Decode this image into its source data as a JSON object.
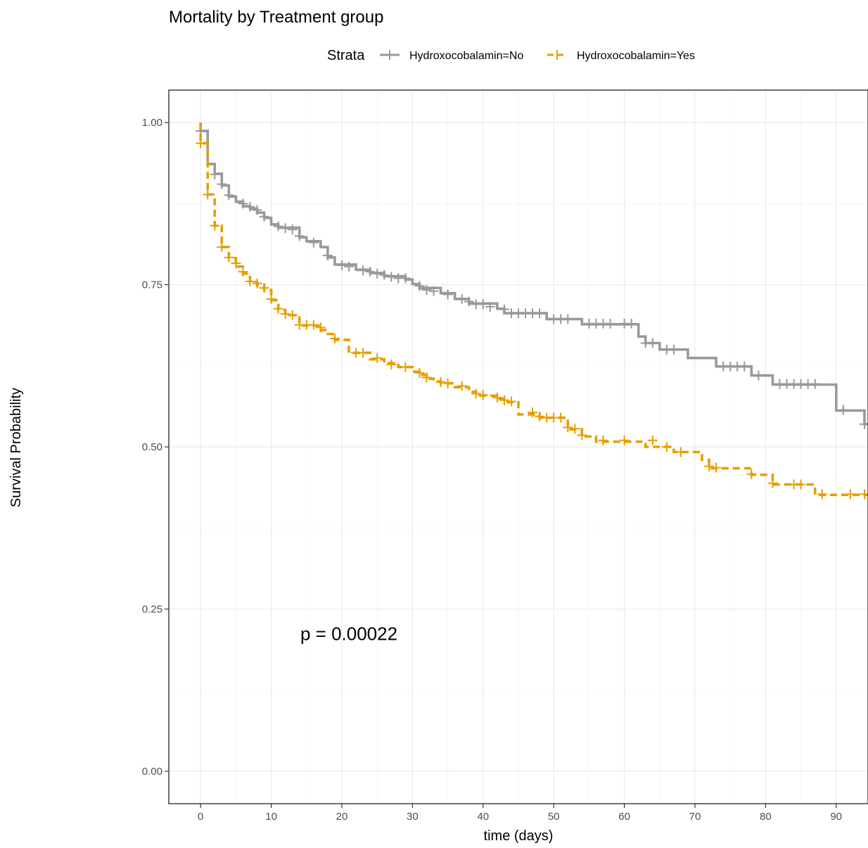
{
  "chart_data": {
    "type": "line",
    "subtype": "kaplan-meier",
    "title": "Mortality by Treatment group",
    "xlabel": "time (days)",
    "ylabel": "Survival Probability",
    "xlim": [
      -4.5,
      94.5
    ],
    "ylim": [
      -0.05,
      1.05
    ],
    "x_ticks": [
      0,
      10,
      20,
      30,
      40,
      50,
      60,
      70,
      80,
      90
    ],
    "x_tick_labels": [
      "0",
      "10",
      "20",
      "30",
      "40",
      "50",
      "60",
      "70",
      "80",
      "90"
    ],
    "y_ticks": [
      0,
      0.25,
      0.5,
      0.75,
      1.0
    ],
    "y_tick_labels": [
      "0.00",
      "0.25",
      "0.50",
      "0.75",
      "1.00"
    ],
    "grid": true,
    "legend": {
      "title": "Strata",
      "position": "top",
      "entries": [
        "Hydroxocobalamin=No",
        "Hydroxocobalamin=Yes"
      ]
    },
    "annotation": {
      "text": "p = 0.00022",
      "x": 21,
      "y": 0.2
    },
    "series": [
      {
        "name": "Hydroxocobalamin=No",
        "color": "#999999",
        "dash": "solid",
        "steps": [
          [
            0,
            1.0
          ],
          [
            0,
            0.987
          ],
          [
            1,
            0.936
          ],
          [
            2,
            0.921
          ],
          [
            3,
            0.903
          ],
          [
            4,
            0.886
          ],
          [
            5,
            0.878
          ],
          [
            6,
            0.871
          ],
          [
            7,
            0.867
          ],
          [
            8,
            0.861
          ],
          [
            9,
            0.853
          ],
          [
            10,
            0.843
          ],
          [
            11,
            0.838
          ],
          [
            14,
            0.823
          ],
          [
            15,
            0.817
          ],
          [
            17,
            0.808
          ],
          [
            18,
            0.792
          ],
          [
            19,
            0.781
          ],
          [
            22,
            0.773
          ],
          [
            24,
            0.768
          ],
          [
            26,
            0.763
          ],
          [
            29,
            0.758
          ],
          [
            30,
            0.751
          ],
          [
            31,
            0.745
          ],
          [
            34,
            0.737
          ],
          [
            36,
            0.728
          ],
          [
            38,
            0.721
          ],
          [
            42,
            0.713
          ],
          [
            43,
            0.706
          ],
          [
            49,
            0.697
          ],
          [
            54,
            0.689
          ],
          [
            62,
            0.67
          ],
          [
            63,
            0.66
          ],
          [
            65,
            0.65
          ],
          [
            69,
            0.637
          ],
          [
            73,
            0.624
          ],
          [
            78,
            0.61
          ],
          [
            81,
            0.596
          ],
          [
            90,
            0.556
          ],
          [
            94,
            0.535
          ],
          [
            94.5,
            0.535
          ]
        ],
        "censored": [
          [
            0,
            0.987
          ],
          [
            2,
            0.92
          ],
          [
            3,
            0.905
          ],
          [
            4,
            0.888
          ],
          [
            6,
            0.875
          ],
          [
            7,
            0.87
          ],
          [
            8,
            0.865
          ],
          [
            9,
            0.855
          ],
          [
            11,
            0.84
          ],
          [
            12,
            0.837
          ],
          [
            13,
            0.835
          ],
          [
            14,
            0.825
          ],
          [
            16,
            0.815
          ],
          [
            18,
            0.795
          ],
          [
            20,
            0.78
          ],
          [
            21,
            0.778
          ],
          [
            23,
            0.772
          ],
          [
            24,
            0.77
          ],
          [
            25,
            0.767
          ],
          [
            26,
            0.765
          ],
          [
            27,
            0.762
          ],
          [
            28,
            0.76
          ],
          [
            29,
            0.76
          ],
          [
            31,
            0.748
          ],
          [
            32,
            0.742
          ],
          [
            33,
            0.74
          ],
          [
            35,
            0.735
          ],
          [
            37,
            0.728
          ],
          [
            38,
            0.724
          ],
          [
            39,
            0.72
          ],
          [
            40,
            0.72
          ],
          [
            41,
            0.716
          ],
          [
            43,
            0.712
          ],
          [
            44,
            0.706
          ],
          [
            45,
            0.706
          ],
          [
            46,
            0.706
          ],
          [
            47,
            0.706
          ],
          [
            48,
            0.706
          ],
          [
            50,
            0.697
          ],
          [
            51,
            0.697
          ],
          [
            52,
            0.697
          ],
          [
            55,
            0.69
          ],
          [
            56,
            0.69
          ],
          [
            57,
            0.69
          ],
          [
            58,
            0.69
          ],
          [
            60,
            0.69
          ],
          [
            61,
            0.69
          ],
          [
            63,
            0.66
          ],
          [
            64,
            0.66
          ],
          [
            66,
            0.65
          ],
          [
            67,
            0.65
          ],
          [
            74,
            0.624
          ],
          [
            75,
            0.624
          ],
          [
            76,
            0.624
          ],
          [
            77,
            0.624
          ],
          [
            79,
            0.61
          ],
          [
            82,
            0.597
          ],
          [
            83,
            0.597
          ],
          [
            84,
            0.597
          ],
          [
            85,
            0.597
          ],
          [
            86,
            0.597
          ],
          [
            87,
            0.597
          ],
          [
            91,
            0.557
          ],
          [
            94,
            0.535
          ]
        ]
      },
      {
        "name": "Hydroxocobalamin=Yes",
        "color": "#E69F00",
        "dash": "dashed",
        "steps": [
          [
            0,
            1.0
          ],
          [
            0,
            0.968
          ],
          [
            1,
            0.889
          ],
          [
            2,
            0.841
          ],
          [
            3,
            0.808
          ],
          [
            4,
            0.791
          ],
          [
            5,
            0.778
          ],
          [
            6,
            0.767
          ],
          [
            7,
            0.754
          ],
          [
            8,
            0.749
          ],
          [
            9,
            0.742
          ],
          [
            10,
            0.726
          ],
          [
            11,
            0.711
          ],
          [
            12,
            0.703
          ],
          [
            14,
            0.687
          ],
          [
            17,
            0.68
          ],
          [
            18,
            0.674
          ],
          [
            19,
            0.665
          ],
          [
            21,
            0.645
          ],
          [
            24,
            0.635
          ],
          [
            26,
            0.629
          ],
          [
            28,
            0.623
          ],
          [
            30,
            0.616
          ],
          [
            31,
            0.611
          ],
          [
            32,
            0.605
          ],
          [
            33,
            0.601
          ],
          [
            34,
            0.598
          ],
          [
            36,
            0.592
          ],
          [
            38,
            0.585
          ],
          [
            39,
            0.579
          ],
          [
            42,
            0.574
          ],
          [
            43,
            0.569
          ],
          [
            45,
            0.55
          ],
          [
            48,
            0.545
          ],
          [
            52,
            0.527
          ],
          [
            54,
            0.516
          ],
          [
            56,
            0.508
          ],
          [
            63,
            0.5
          ],
          [
            67,
            0.492
          ],
          [
            71,
            0.48
          ],
          [
            72,
            0.467
          ],
          [
            78,
            0.457
          ],
          [
            81,
            0.442
          ],
          [
            87,
            0.426
          ],
          [
            94.5,
            0.426
          ]
        ],
        "censored": [
          [
            0,
            0.968
          ],
          [
            1,
            0.889
          ],
          [
            2,
            0.841
          ],
          [
            3,
            0.808
          ],
          [
            4,
            0.792
          ],
          [
            5,
            0.783
          ],
          [
            6,
            0.77
          ],
          [
            7,
            0.755
          ],
          [
            8,
            0.752
          ],
          [
            9,
            0.745
          ],
          [
            10,
            0.728
          ],
          [
            11,
            0.713
          ],
          [
            12,
            0.705
          ],
          [
            13,
            0.703
          ],
          [
            14,
            0.688
          ],
          [
            15,
            0.688
          ],
          [
            16,
            0.688
          ],
          [
            17,
            0.684
          ],
          [
            19,
            0.667
          ],
          [
            22,
            0.645
          ],
          [
            23,
            0.645
          ],
          [
            25,
            0.637
          ],
          [
            27,
            0.627
          ],
          [
            29,
            0.623
          ],
          [
            31,
            0.614
          ],
          [
            32,
            0.607
          ],
          [
            34,
            0.6
          ],
          [
            35,
            0.598
          ],
          [
            37,
            0.594
          ],
          [
            39,
            0.582
          ],
          [
            40,
            0.58
          ],
          [
            42,
            0.576
          ],
          [
            43,
            0.572
          ],
          [
            44,
            0.57
          ],
          [
            47,
            0.553
          ],
          [
            48,
            0.547
          ],
          [
            49,
            0.545
          ],
          [
            50,
            0.545
          ],
          [
            51,
            0.545
          ],
          [
            52,
            0.53
          ],
          [
            53,
            0.528
          ],
          [
            54,
            0.518
          ],
          [
            57,
            0.51
          ],
          [
            60,
            0.51
          ],
          [
            64,
            0.51
          ],
          [
            66,
            0.5
          ],
          [
            68,
            0.492
          ],
          [
            72,
            0.47
          ],
          [
            73,
            0.468
          ],
          [
            78,
            0.458
          ],
          [
            81,
            0.444
          ],
          [
            84,
            0.442
          ],
          [
            85,
            0.442
          ],
          [
            88,
            0.427
          ],
          [
            92,
            0.427
          ],
          [
            94,
            0.427
          ]
        ]
      }
    ]
  }
}
